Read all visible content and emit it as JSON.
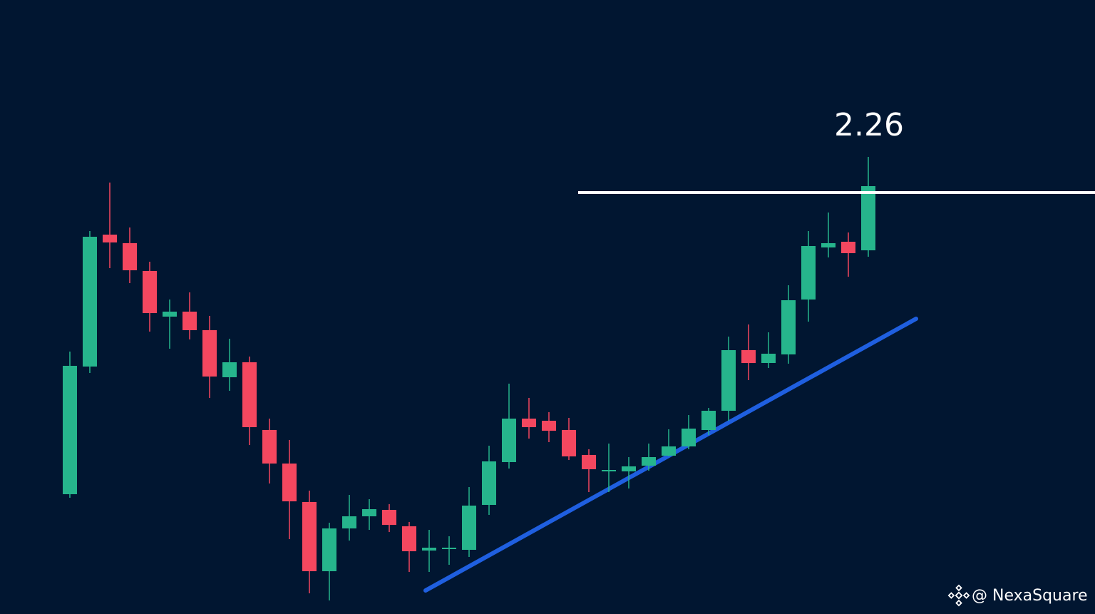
{
  "chart_data": {
    "type": "candlestick",
    "open": [
      1.414,
      1.772,
      2.142,
      2.118,
      2.04,
      1.912,
      1.926,
      1.874,
      1.742,
      1.784,
      1.594,
      1.5,
      1.392,
      1.198,
      1.318,
      1.352,
      1.37,
      1.324,
      1.256,
      1.26,
      1.258,
      1.384,
      1.504,
      1.626,
      1.62,
      1.594,
      1.524,
      1.478,
      1.478,
      1.494,
      1.522,
      1.548,
      1.594,
      1.648,
      1.818,
      1.782,
      1.806,
      1.96,
      2.106,
      2.122,
      2.098
    ],
    "high": [
      1.814,
      2.152,
      2.288,
      2.162,
      2.066,
      1.96,
      1.98,
      1.914,
      1.85,
      1.8,
      1.626,
      1.566,
      1.424,
      1.334,
      1.412,
      1.4,
      1.386,
      1.336,
      1.314,
      1.296,
      1.434,
      1.55,
      1.724,
      1.684,
      1.644,
      1.628,
      1.54,
      1.556,
      1.518,
      1.556,
      1.596,
      1.636,
      1.656,
      1.856,
      1.89,
      1.868,
      2.0,
      2.152,
      2.204,
      2.148,
      2.36
    ],
    "low": [
      1.404,
      1.754,
      2.048,
      2.006,
      1.87,
      1.822,
      1.848,
      1.684,
      1.704,
      1.552,
      1.444,
      1.288,
      1.136,
      1.116,
      1.284,
      1.314,
      1.308,
      1.196,
      1.196,
      1.216,
      1.238,
      1.356,
      1.486,
      1.57,
      1.56,
      1.51,
      1.42,
      1.42,
      1.43,
      1.48,
      1.52,
      1.54,
      1.58,
      1.62,
      1.734,
      1.768,
      1.78,
      1.898,
      2.078,
      2.024,
      2.08
    ],
    "close": [
      1.774,
      2.136,
      2.12,
      2.042,
      1.922,
      1.926,
      1.874,
      1.744,
      1.784,
      1.602,
      1.5,
      1.394,
      1.198,
      1.318,
      1.352,
      1.372,
      1.328,
      1.254,
      1.264,
      1.264,
      1.382,
      1.506,
      1.626,
      1.602,
      1.592,
      1.52,
      1.484,
      1.482,
      1.492,
      1.518,
      1.548,
      1.598,
      1.648,
      1.818,
      1.782,
      1.808,
      1.958,
      2.11,
      2.118,
      2.09,
      2.278
    ],
    "up_color": "#26b58c",
    "down_color": "#f4475f",
    "ylim": [
      1.078,
      2.8
    ],
    "level": 2.26,
    "level_color": "#ffffff",
    "watermark": "@ NexaSquare"
  }
}
